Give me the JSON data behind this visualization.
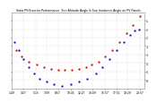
{
  "title": "Solar PV/Inverter Performance  Sun Altitude Angle & Sun Incidence Angle on PV Panels",
  "bg_color": "#ffffff",
  "plot_bg_color": "#ffffff",
  "grid_color": "#aaaaaa",
  "text_color": "#000000",
  "altitude_color": "#0000cc",
  "incidence_color": "#cc0000",
  "ylim": [
    0,
    90
  ],
  "yticks": [
    10,
    20,
    30,
    40,
    50,
    60,
    70,
    80
  ],
  "xlim_start": 0,
  "xlim_end": 95,
  "altitude_x": [
    2,
    5,
    8,
    12,
    16,
    20,
    25,
    30,
    36,
    42,
    48,
    54,
    60,
    65,
    70,
    75,
    80,
    85,
    88,
    91
  ],
  "altitude_y": [
    55,
    45,
    35,
    25,
    18,
    12,
    8,
    5,
    3,
    5,
    8,
    12,
    18,
    25,
    35,
    45,
    55,
    63,
    68,
    70
  ],
  "incidence_x": [
    3,
    7,
    12,
    18,
    23,
    28,
    33,
    38,
    43,
    48,
    53,
    57,
    62,
    67,
    72,
    77,
    82,
    87,
    92
  ],
  "incidence_y": [
    45,
    38,
    32,
    28,
    25,
    23,
    22,
    22,
    22,
    23,
    25,
    28,
    32,
    38,
    45,
    55,
    65,
    75,
    85
  ],
  "xtick_positions": [
    0,
    8,
    17,
    25,
    33,
    42,
    50,
    58,
    67,
    75,
    83,
    92
  ],
  "xtick_labels": [
    "1:49",
    "3:27",
    "5:15",
    "7:09",
    "8:57",
    "10:45",
    "12:27",
    "14:09",
    "15:57",
    "17:51",
    "19:29",
    "20:57"
  ],
  "right_ytick_labels": [
    "8.",
    "4.",
    "4.",
    "3.",
    "3.",
    "2.",
    "2.",
    "1."
  ]
}
